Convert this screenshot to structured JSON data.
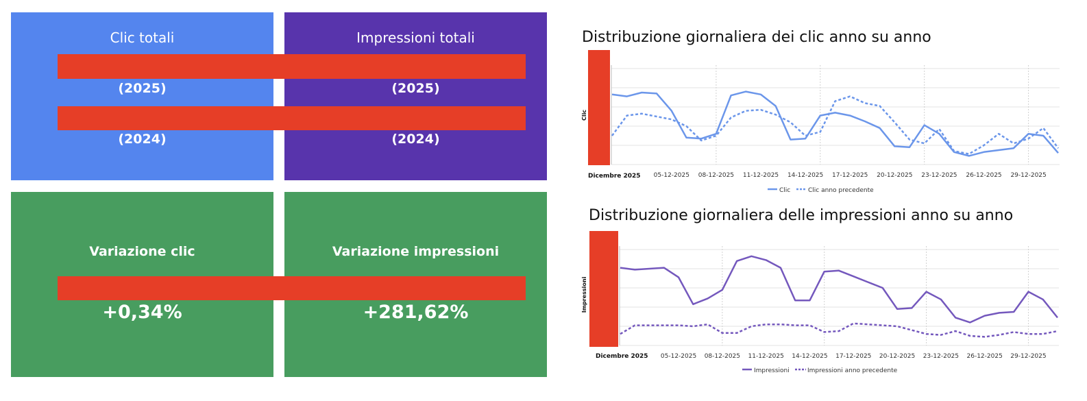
{
  "colors": {
    "clic_card": "#5485ee",
    "impressioni_card": "#5834ac",
    "variation_card": "#489d5f",
    "redaction": "#e63e27",
    "clic_line": "#6b96ea",
    "impressioni_line": "#7458bd"
  },
  "kpi": {
    "clic": {
      "title": "Clic totali",
      "year_current": "(2025)",
      "year_previous": "(2024)"
    },
    "impressioni": {
      "title": "Impressioni totali",
      "year_current": "(2025)",
      "year_previous": "(2024)"
    },
    "var_clic": {
      "title": "Variazione clic",
      "value": "+0,34%"
    },
    "var_impressioni": {
      "title": "Variazione impressioni",
      "value": "+281,62%"
    }
  },
  "chart_data": [
    {
      "type": "line",
      "title": "Distribuzione giornaliera dei clic anno su anno",
      "ylabel": "Clic",
      "x_first_label": "Dicembre 2025",
      "x_tick_labels": [
        "05-12-2025",
        "08-12-2025",
        "11-12-2025",
        "14-12-2025",
        "17-12-2025",
        "20-12-2025",
        "23-12-2025",
        "26-12-2025",
        "29-12-2025"
      ],
      "grid": true,
      "legend": "bottom",
      "series": [
        {
          "name": "Clic",
          "style": "solid",
          "values": [
            73,
            71,
            75,
            74,
            56,
            28,
            27,
            32,
            72,
            76,
            73,
            61,
            26,
            27,
            51,
            54,
            51,
            45,
            38,
            19,
            18,
            41,
            32,
            13,
            9,
            13,
            15,
            17,
            32,
            30,
            12
          ]
        },
        {
          "name": "Clic anno precedente",
          "style": "dashed",
          "values": [
            30,
            51,
            53,
            50,
            47,
            40,
            25,
            30,
            49,
            56,
            57,
            52,
            44,
            30,
            34,
            66,
            71,
            64,
            61,
            44,
            26,
            22,
            37,
            14,
            11,
            20,
            32,
            22,
            27,
            38,
            17
          ]
        }
      ]
    },
    {
      "type": "line",
      "title": "Distribuzione giornaliera delle impressioni anno su anno",
      "ylabel": "Impressioni",
      "x_first_label": "Dicembre 2025",
      "x_tick_labels": [
        "05-12-2025",
        "08-12-2025",
        "11-12-2025",
        "14-12-2025",
        "17-12-2025",
        "20-12-2025",
        "23-12-2025",
        "26-12-2025",
        "29-12-2025"
      ],
      "grid": true,
      "legend": "bottom",
      "series": [
        {
          "name": "Impressioni",
          "style": "solid",
          "values": [
            81,
            79,
            80,
            81,
            71,
            43,
            49,
            58,
            88,
            93,
            89,
            81,
            47,
            47,
            77,
            78,
            72,
            66,
            60,
            38,
            39,
            56,
            48,
            29,
            24,
            31,
            34,
            35,
            56,
            48,
            29
          ]
        },
        {
          "name": "Impressioni anno precedente",
          "style": "dashed",
          "values": [
            12,
            21,
            21,
            21,
            21,
            20,
            22,
            13,
            13,
            20,
            22,
            22,
            21,
            21,
            14,
            15,
            23,
            22,
            21,
            20,
            16,
            12,
            11,
            15,
            10,
            9,
            11,
            14,
            12,
            12,
            15
          ]
        }
      ]
    }
  ]
}
